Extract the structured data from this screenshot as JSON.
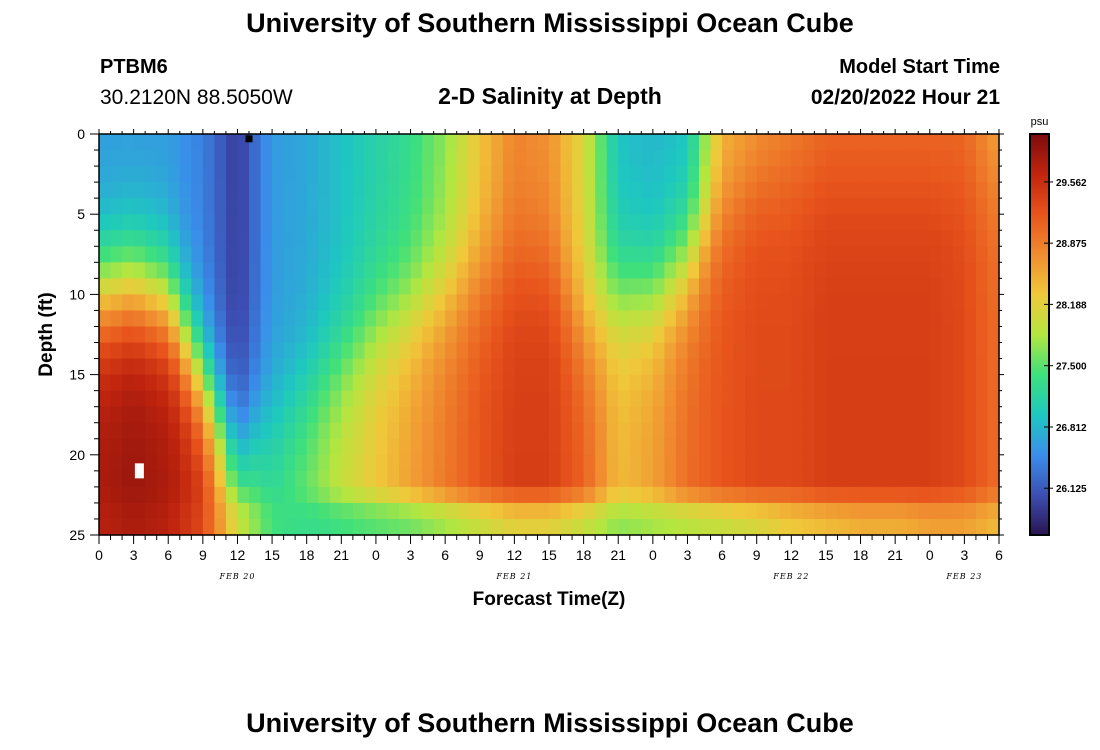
{
  "header": {
    "title": "University of Southern Mississippi Ocean Cube",
    "station_id": "PTBM6",
    "coordinates": "30.2120N  88.5050W",
    "subtitle": "2-D Salinity at Depth",
    "model_label": "Model Start Time",
    "model_time": "02/20/2022 Hour 21"
  },
  "footer": {
    "title": "University of Southern Mississippi Ocean Cube"
  },
  "colors": {
    "colormap": [
      "#2a1450",
      "#3c4fb4",
      "#3a8eea",
      "#1ec8c0",
      "#3ee07c",
      "#b4e640",
      "#f0c83a",
      "#f08c30",
      "#e8541c",
      "#c0240e",
      "#7c0c0c"
    ]
  },
  "chart_data": {
    "type": "heatmap",
    "title": "2-D Salinity at Depth",
    "xlabel": "Forecast Time(Z)",
    "ylabel": "Depth (ft)",
    "x_range_hours": [
      0,
      78
    ],
    "xticks": [
      "0",
      "3",
      "6",
      "9",
      "12",
      "15",
      "18",
      "21",
      "0",
      "3",
      "6",
      "9",
      "12",
      "15",
      "18",
      "21",
      "0",
      "3",
      "6",
      "9",
      "12",
      "15",
      "18",
      "21",
      "0",
      "3",
      "6"
    ],
    "x_day_labels": [
      {
        "label": "FEB 20",
        "hour": 12
      },
      {
        "label": "FEB 21",
        "hour": 36
      },
      {
        "label": "FEB 22",
        "hour": 60
      },
      {
        "label": "FEB 23",
        "hour": 75
      }
    ],
    "y_range": [
      0,
      25
    ],
    "yticks": [
      "0",
      "5",
      "10",
      "15",
      "20",
      "25"
    ],
    "colorbar": {
      "unit": "psu",
      "range": [
        25.6,
        30.1
      ],
      "ticks": [
        "29.562",
        "28.875",
        "28.188",
        "27.500",
        "26.812",
        "26.125"
      ],
      "tick_values": [
        29.562,
        28.875,
        28.188,
        27.5,
        26.812,
        26.125
      ]
    },
    "columns": [
      {
        "hour": 0,
        "surface": 26.6,
        "bottom": 29.8,
        "halocline_depth": 10.0
      },
      {
        "hour": 3,
        "surface": 26.6,
        "bottom": 29.9,
        "halocline_depth": 9.5
      },
      {
        "hour": 6,
        "surface": 26.6,
        "bottom": 29.8,
        "halocline_depth": 10.5
      },
      {
        "hour": 9,
        "surface": 26.4,
        "bottom": 29.5,
        "halocline_depth": 15.5
      },
      {
        "hour": 12,
        "surface": 25.9,
        "bottom": 27.9,
        "halocline_depth": 20.0
      },
      {
        "hour": 15,
        "surface": 26.6,
        "bottom": 27.3,
        "halocline_depth": 18.0
      },
      {
        "hour": 18,
        "surface": 26.7,
        "bottom": 27.6,
        "halocline_depth": 16.0
      },
      {
        "hour": 21,
        "surface": 26.9,
        "bottom": 28.0,
        "halocline_depth": 14.0
      },
      {
        "hour": 24,
        "surface": 27.1,
        "bottom": 28.3,
        "halocline_depth": 12.0
      },
      {
        "hour": 27,
        "surface": 27.3,
        "bottom": 28.6,
        "halocline_depth": 11.0
      },
      {
        "hour": 30,
        "surface": 27.7,
        "bottom": 28.9,
        "halocline_depth": 10.0
      },
      {
        "hour": 33,
        "surface": 28.3,
        "bottom": 29.2,
        "halocline_depth": 9.0
      },
      {
        "hour": 36,
        "surface": 28.8,
        "bottom": 29.4,
        "halocline_depth": 8.0
      },
      {
        "hour": 39,
        "surface": 28.7,
        "bottom": 29.4,
        "halocline_depth": 8.0
      },
      {
        "hour": 42,
        "surface": 28.1,
        "bottom": 29.1,
        "halocline_depth": 12.0
      },
      {
        "hour": 45,
        "surface": 26.9,
        "bottom": 28.4,
        "halocline_depth": 10.0
      },
      {
        "hour": 48,
        "surface": 26.8,
        "bottom": 28.6,
        "halocline_depth": 10.0
      },
      {
        "hour": 51,
        "surface": 26.9,
        "bottom": 29.0,
        "halocline_depth": 8.0
      },
      {
        "hour": 54,
        "surface": 28.4,
        "bottom": 29.2,
        "halocline_depth": 5.0
      },
      {
        "hour": 57,
        "surface": 28.6,
        "bottom": 29.3,
        "halocline_depth": 3.0
      },
      {
        "hour": 60,
        "surface": 28.8,
        "bottom": 29.3,
        "halocline_depth": 3.0
      },
      {
        "hour": 63,
        "surface": 29.0,
        "bottom": 29.4,
        "halocline_depth": 3.0
      },
      {
        "hour": 66,
        "surface": 29.0,
        "bottom": 29.4,
        "halocline_depth": 3.0
      },
      {
        "hour": 69,
        "surface": 29.0,
        "bottom": 29.4,
        "halocline_depth": 3.0
      },
      {
        "hour": 72,
        "surface": 29.0,
        "bottom": 29.4,
        "halocline_depth": 3.0
      },
      {
        "hour": 75,
        "surface": 29.0,
        "bottom": 29.3,
        "halocline_depth": 3.0
      },
      {
        "hour": 78,
        "surface": 28.5,
        "bottom": 29.0,
        "halocline_depth": 3.0
      }
    ],
    "near_bottom_layer": {
      "depth_from": 22.0,
      "depth_to": 25.0,
      "values_by_column": [
        29.7,
        29.8,
        29.7,
        29.3,
        28.0,
        27.4,
        27.3,
        27.4,
        27.5,
        27.6,
        27.8,
        28.0,
        28.2,
        28.2,
        28.0,
        27.7,
        27.8,
        27.9,
        28.0,
        28.1,
        28.3,
        28.4,
        28.5,
        28.5,
        28.6,
        28.6,
        28.4
      ]
    },
    "markers": [
      {
        "name": "min",
        "hour": 13,
        "depth": 0.3
      },
      {
        "name": "max",
        "hour": 3.5,
        "depth": 21.0
      }
    ]
  }
}
